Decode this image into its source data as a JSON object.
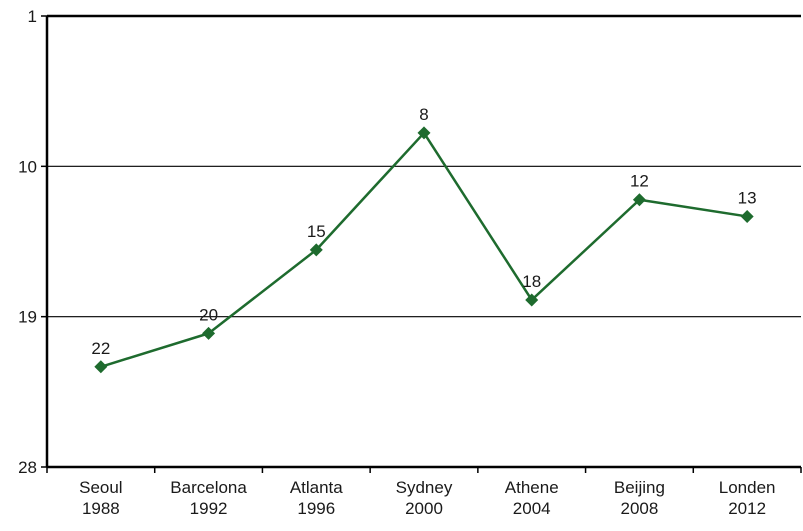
{
  "chart_data": {
    "type": "line",
    "title": "",
    "xlabel": "",
    "ylabel": "",
    "y_axis": {
      "inverted": true,
      "range": [
        1,
        28
      ],
      "ticks": [
        1,
        10,
        19,
        28
      ]
    },
    "grid": "horizontal",
    "categories": [
      [
        "Seoul",
        "1988"
      ],
      [
        "Barcelona",
        "1992"
      ],
      [
        "Atlanta",
        "1996"
      ],
      [
        "Sydney",
        "2000"
      ],
      [
        "Athene",
        "2004"
      ],
      [
        "Beijing",
        "2008"
      ],
      [
        "Londen",
        "2012"
      ]
    ],
    "series": [
      {
        "values": [
          22,
          20,
          15,
          8,
          18,
          12,
          13
        ],
        "color": "#1e6b2e",
        "marker": "diamond"
      }
    ]
  }
}
